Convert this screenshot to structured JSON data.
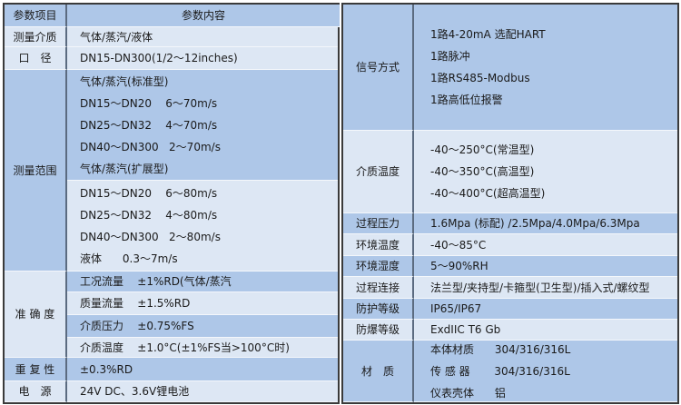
{
  "left_table": {
    "header": {
      "item": "参数项目",
      "content": "参数内容"
    },
    "rows": [
      {
        "label": "测量介质",
        "blocks": [
          {
            "lines": [
              "气体/蒸汽/液体"
            ]
          }
        ]
      },
      {
        "label": "口　径",
        "blocks": [
          {
            "lines": [
              "DN15-DN300(1/2～12inches)"
            ]
          }
        ]
      },
      {
        "label": "测量范围",
        "blocks": [
          {
            "lines": [
              "气体/蒸汽(标准型)",
              "DN15～DN20    6～70m/s",
              "DN25～DN32    4～70m/s",
              "DN40～DN300   2～70m/s",
              "气体/蒸汽(扩展型)"
            ]
          },
          {
            "lines": [
              "DN15～DN20    6～80m/s",
              "DN25～DN32    4～80m/s",
              "DN40～DN300   2～80m/s",
              "液体      0.3～7m/s"
            ]
          }
        ]
      },
      {
        "label": "准 确 度",
        "blocks": [
          {
            "lines": [
              "工况流量    ±1%RD(气体/蒸汽"
            ]
          },
          {
            "lines": [
              "质量流量    ±1.5%RD"
            ]
          },
          {
            "lines": [
              "介质压力    ±0.75%FS"
            ]
          },
          {
            "lines": [
              "介质温度    ±1.0°C(±1%FS当>100°C时)"
            ]
          }
        ]
      },
      {
        "label": "重 复 性",
        "blocks": [
          {
            "lines": [
              "±0.3%RD"
            ]
          }
        ]
      },
      {
        "label": "电　源",
        "blocks": [
          {
            "lines": [
              "24V DC、3.6V锂电池"
            ]
          }
        ]
      }
    ]
  },
  "right_table": {
    "rows": [
      {
        "label": "信号方式",
        "blocks": [
          {
            "lines": [
              "1路4-20mA 选配HART",
              "1路脉冲",
              "1路RS485-Modbus",
              "1路高低位报警"
            ]
          }
        ]
      },
      {
        "label": "介质温度",
        "blocks": [
          {
            "lines": [
              "-40～250°C(常温型)",
              "-40～350°C(高温型)",
              "-40～400°C(超高温型)"
            ]
          }
        ]
      },
      {
        "label": "过程压力",
        "blocks": [
          {
            "lines": [
              "1.6Mpa (标配) /2.5Mpa/4.0Mpa/6.3Mpa"
            ]
          }
        ]
      },
      {
        "label": "环境温度",
        "blocks": [
          {
            "lines": [
              "-40～85°C"
            ]
          }
        ]
      },
      {
        "label": "环境湿度",
        "blocks": [
          {
            "lines": [
              "5～90%RH"
            ]
          }
        ]
      },
      {
        "label": "过程连接",
        "blocks": [
          {
            "lines": [
              "法兰型/夹持型/卡箍型(卫生型)/插入式/螺纹型"
            ]
          }
        ]
      },
      {
        "label": "防护等级",
        "blocks": [
          {
            "lines": [
              "IP65/IP67"
            ]
          }
        ]
      },
      {
        "label": "防爆等级",
        "blocks": [
          {
            "lines": [
              "ExdIIC T6 Gb"
            ]
          }
        ]
      },
      {
        "label": "材　质",
        "blocks": [
          {
            "lines": [
              "本体材质      304/316/316L",
              "传 感 器       304/316/316L",
              "仪表壳体      铝"
            ]
          }
        ]
      }
    ]
  },
  "colors": {
    "dark_row": "#aec7e8",
    "light_row": "#dde7f4",
    "border": "#3a3a3a"
  }
}
